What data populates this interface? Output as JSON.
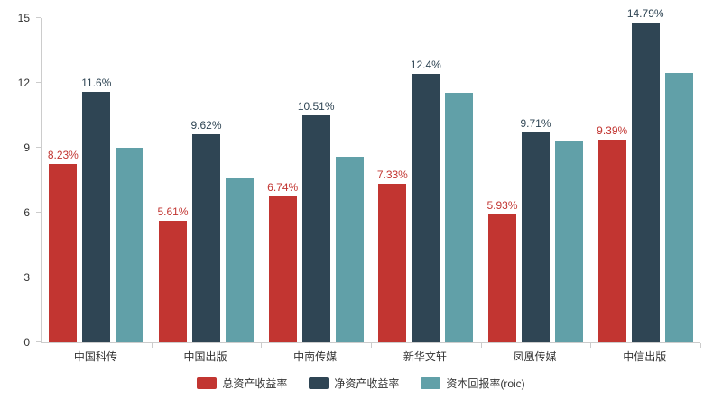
{
  "chart_data": {
    "type": "bar",
    "title": "",
    "xlabel": "",
    "ylabel": "",
    "categories": [
      "中国科传",
      "中国出版",
      "中南传媒",
      "新华文轩",
      "凤凰传媒",
      "中信出版"
    ],
    "series": [
      {
        "name": "总资产收益率",
        "color": "#c23531",
        "values": [
          8.23,
          5.61,
          6.74,
          7.33,
          5.93,
          9.39
        ],
        "labels": [
          "8.23%",
          "5.61%",
          "6.74%",
          "7.33%",
          "5.93%",
          "9.39%"
        ]
      },
      {
        "name": "净资产收益率",
        "color": "#2f4554",
        "values": [
          11.6,
          9.62,
          10.51,
          12.4,
          9.71,
          14.79
        ],
        "labels": [
          "11.6%",
          "9.62%",
          "10.51%",
          "12.4%",
          "9.71%",
          "14.79%"
        ]
      },
      {
        "name": "资本回报率(roic)",
        "color": "#61a0a8",
        "values": [
          9.0,
          7.6,
          8.6,
          11.55,
          9.35,
          12.45
        ],
        "labels": null
      }
    ],
    "ylim": [
      0,
      15
    ],
    "yticks": [
      0,
      3,
      6,
      9,
      12,
      15
    ],
    "grid": false,
    "legend_position": "bottom",
    "axis_color": "#cccccc",
    "text_color": "#333333"
  }
}
